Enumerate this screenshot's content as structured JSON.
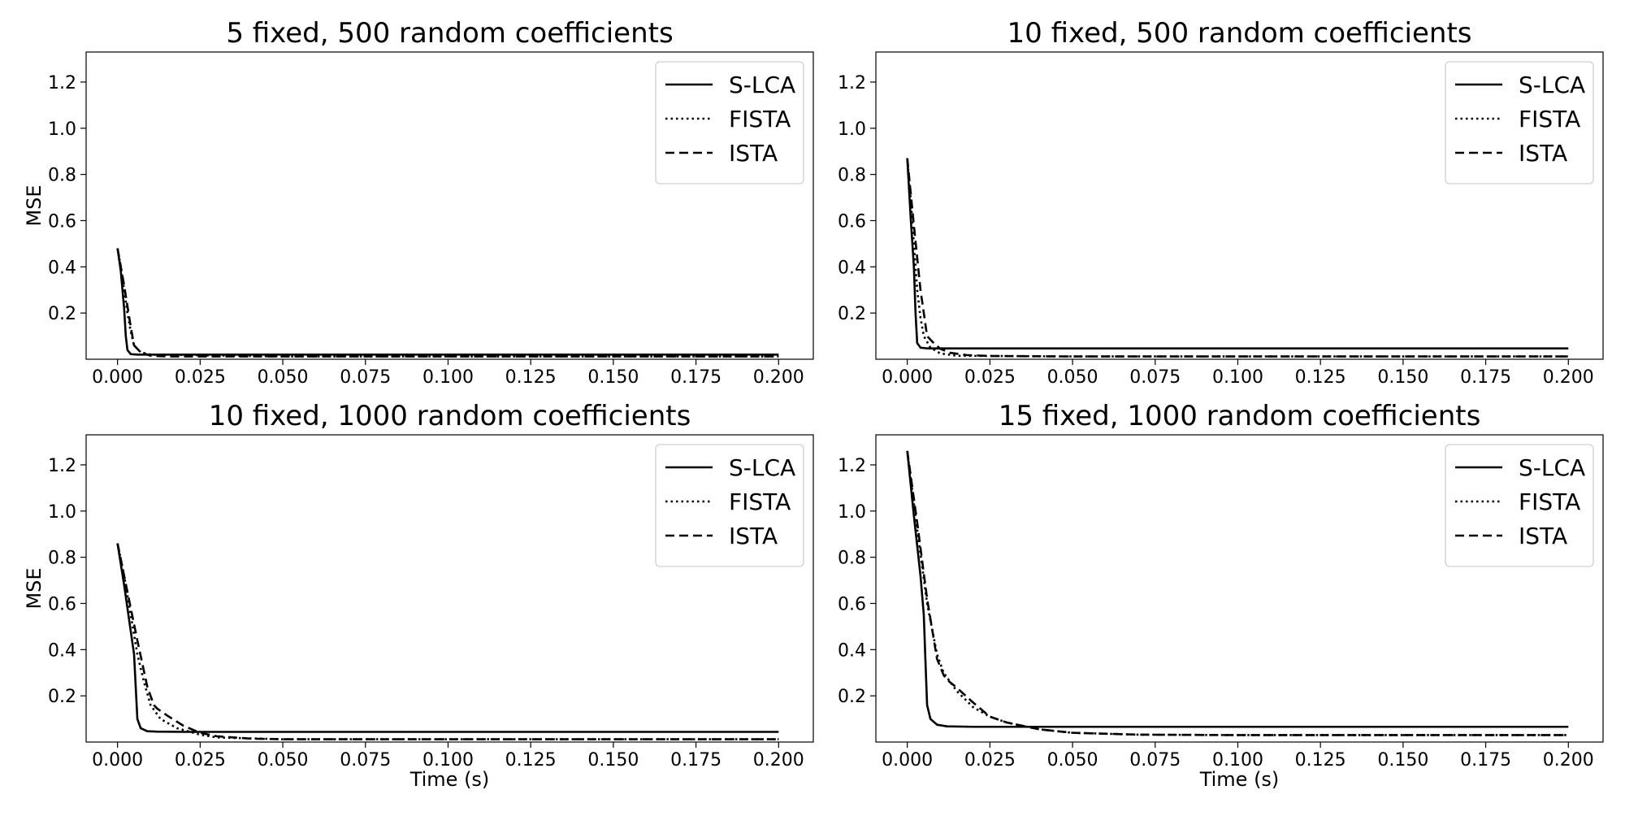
{
  "chart_data": [
    {
      "type": "line",
      "title": "5 fixed, 500 random coefficients",
      "xlabel": "",
      "ylabel": "MSE",
      "xlim": [
        -0.0095,
        0.2105
      ],
      "ylim": [
        0.0,
        1.33
      ],
      "xticks": [
        "0.000",
        "0.025",
        "0.050",
        "0.075",
        "0.100",
        "0.125",
        "0.150",
        "0.175",
        "0.200"
      ],
      "yticks": [
        "0.2",
        "0.4",
        "0.6",
        "0.8",
        "1.0",
        "1.2"
      ],
      "grid": false,
      "legend": "top-right",
      "series": [
        {
          "name": "S-LCA",
          "style": "solid",
          "color": "#000000",
          "x": [
            0,
            0.001,
            0.002,
            0.0025,
            0.003,
            0.004,
            0.006,
            0.01,
            0.05,
            0.1,
            0.15,
            0.2
          ],
          "y": [
            0.48,
            0.38,
            0.22,
            0.1,
            0.04,
            0.022,
            0.02,
            0.02,
            0.02,
            0.02,
            0.02,
            0.02
          ]
        },
        {
          "name": "FISTA",
          "style": "dotted",
          "color": "#000000",
          "x": [
            0,
            0.001,
            0.002,
            0.003,
            0.004,
            0.005,
            0.007,
            0.01,
            0.05,
            0.1,
            0.15,
            0.2
          ],
          "y": [
            0.48,
            0.4,
            0.3,
            0.2,
            0.12,
            0.06,
            0.03,
            0.02,
            0.012,
            0.012,
            0.012,
            0.012
          ]
        },
        {
          "name": "ISTA",
          "style": "dashed",
          "color": "#000000",
          "x": [
            0,
            0.002,
            0.004,
            0.005,
            0.007,
            0.01,
            0.015,
            0.05,
            0.1,
            0.15,
            0.2
          ],
          "y": [
            0.48,
            0.32,
            0.14,
            0.06,
            0.03,
            0.015,
            0.012,
            0.012,
            0.012,
            0.012,
            0.012
          ]
        }
      ]
    },
    {
      "type": "line",
      "title": "10 fixed, 500 random coefficients",
      "xlabel": "",
      "ylabel": "",
      "xlim": [
        -0.0095,
        0.2105
      ],
      "ylim": [
        0.0,
        1.33
      ],
      "xticks": [
        "0.000",
        "0.025",
        "0.050",
        "0.075",
        "0.100",
        "0.125",
        "0.150",
        "0.175",
        "0.200"
      ],
      "yticks": [
        "0.2",
        "0.4",
        "0.6",
        "0.8",
        "1.0",
        "1.2"
      ],
      "grid": false,
      "legend": "top-right",
      "series": [
        {
          "name": "S-LCA",
          "style": "solid",
          "color": "#000000",
          "x": [
            0,
            0.001,
            0.002,
            0.0025,
            0.003,
            0.004,
            0.006,
            0.01,
            0.05,
            0.1,
            0.15,
            0.2
          ],
          "y": [
            0.87,
            0.62,
            0.4,
            0.2,
            0.07,
            0.05,
            0.047,
            0.047,
            0.047,
            0.047,
            0.047,
            0.047
          ]
        },
        {
          "name": "FISTA",
          "style": "dotted",
          "color": "#000000",
          "x": [
            0,
            0.001,
            0.002,
            0.003,
            0.004,
            0.005,
            0.007,
            0.01,
            0.015,
            0.05,
            0.1,
            0.2
          ],
          "y": [
            0.87,
            0.7,
            0.5,
            0.3,
            0.18,
            0.1,
            0.05,
            0.025,
            0.015,
            0.012,
            0.012,
            0.012
          ]
        },
        {
          "name": "ISTA",
          "style": "dashed",
          "color": "#000000",
          "x": [
            0,
            0.002,
            0.004,
            0.006,
            0.008,
            0.01,
            0.013,
            0.018,
            0.025,
            0.05,
            0.1,
            0.2
          ],
          "y": [
            0.87,
            0.58,
            0.3,
            0.1,
            0.07,
            0.045,
            0.028,
            0.018,
            0.014,
            0.012,
            0.012,
            0.012
          ]
        }
      ]
    },
    {
      "type": "line",
      "title": "10 fixed, 1000 random coefficients",
      "xlabel": "Time (s)",
      "ylabel": "MSE",
      "xlim": [
        -0.0095,
        0.2105
      ],
      "ylim": [
        0.0,
        1.33
      ],
      "xticks": [
        "0.000",
        "0.025",
        "0.050",
        "0.075",
        "0.100",
        "0.125",
        "0.150",
        "0.175",
        "0.200"
      ],
      "yticks": [
        "0.2",
        "0.4",
        "0.6",
        "0.8",
        "1.0",
        "1.2"
      ],
      "grid": false,
      "legend": "top-right",
      "series": [
        {
          "name": "S-LCA",
          "style": "solid",
          "color": "#000000",
          "x": [
            0,
            0.002,
            0.004,
            0.005,
            0.006,
            0.007,
            0.009,
            0.012,
            0.02,
            0.05,
            0.1,
            0.2
          ],
          "y": [
            0.86,
            0.68,
            0.48,
            0.38,
            0.1,
            0.06,
            0.047,
            0.045,
            0.044,
            0.044,
            0.044,
            0.044
          ]
        },
        {
          "name": "FISTA",
          "style": "dotted",
          "color": "#000000",
          "x": [
            0,
            0.002,
            0.004,
            0.006,
            0.008,
            0.01,
            0.013,
            0.018,
            0.025,
            0.03,
            0.05,
            0.1,
            0.2
          ],
          "y": [
            0.86,
            0.72,
            0.55,
            0.38,
            0.26,
            0.16,
            0.1,
            0.06,
            0.032,
            0.02,
            0.012,
            0.012,
            0.012
          ]
        },
        {
          "name": "ISTA",
          "style": "dashed",
          "color": "#000000",
          "x": [
            0,
            0.003,
            0.006,
            0.009,
            0.011,
            0.012,
            0.015,
            0.02,
            0.025,
            0.03,
            0.04,
            0.05,
            0.1,
            0.2
          ],
          "y": [
            0.86,
            0.65,
            0.44,
            0.24,
            0.16,
            0.145,
            0.115,
            0.07,
            0.04,
            0.025,
            0.015,
            0.012,
            0.012,
            0.012
          ]
        }
      ]
    },
    {
      "type": "line",
      "title": "15 fixed, 1000 random coefficients",
      "xlabel": "Time (s)",
      "ylabel": "",
      "xlim": [
        -0.0095,
        0.2105
      ],
      "ylim": [
        0.0,
        1.33
      ],
      "xticks": [
        "0.000",
        "0.025",
        "0.050",
        "0.075",
        "0.100",
        "0.125",
        "0.150",
        "0.175",
        "0.200"
      ],
      "yticks": [
        "0.2",
        "0.4",
        "0.6",
        "0.8",
        "1.0",
        "1.2"
      ],
      "grid": false,
      "legend": "top-right",
      "series": [
        {
          "name": "S-LCA",
          "style": "solid",
          "color": "#000000",
          "x": [
            0,
            0.002,
            0.004,
            0.005,
            0.0055,
            0.006,
            0.007,
            0.009,
            0.012,
            0.02,
            0.05,
            0.1,
            0.2
          ],
          "y": [
            1.26,
            0.98,
            0.72,
            0.55,
            0.35,
            0.16,
            0.1,
            0.075,
            0.068,
            0.066,
            0.066,
            0.066,
            0.066
          ]
        },
        {
          "name": "FISTA",
          "style": "dotted",
          "color": "#000000",
          "x": [
            0,
            0.003,
            0.006,
            0.009,
            0.011,
            0.015,
            0.02,
            0.025,
            0.03,
            0.04,
            0.05,
            0.07,
            0.1,
            0.2
          ],
          "y": [
            1.26,
            0.92,
            0.6,
            0.38,
            0.3,
            0.22,
            0.15,
            0.11,
            0.085,
            0.055,
            0.04,
            0.032,
            0.03,
            0.03
          ]
        },
        {
          "name": "ISTA",
          "style": "dashed",
          "color": "#000000",
          "x": [
            0,
            0.003,
            0.006,
            0.009,
            0.011,
            0.012,
            0.015,
            0.02,
            0.025,
            0.03,
            0.04,
            0.05,
            0.07,
            0.1,
            0.2
          ],
          "y": [
            1.26,
            0.95,
            0.62,
            0.36,
            0.29,
            0.27,
            0.235,
            0.17,
            0.11,
            0.085,
            0.055,
            0.04,
            0.032,
            0.03,
            0.03
          ]
        }
      ]
    }
  ]
}
